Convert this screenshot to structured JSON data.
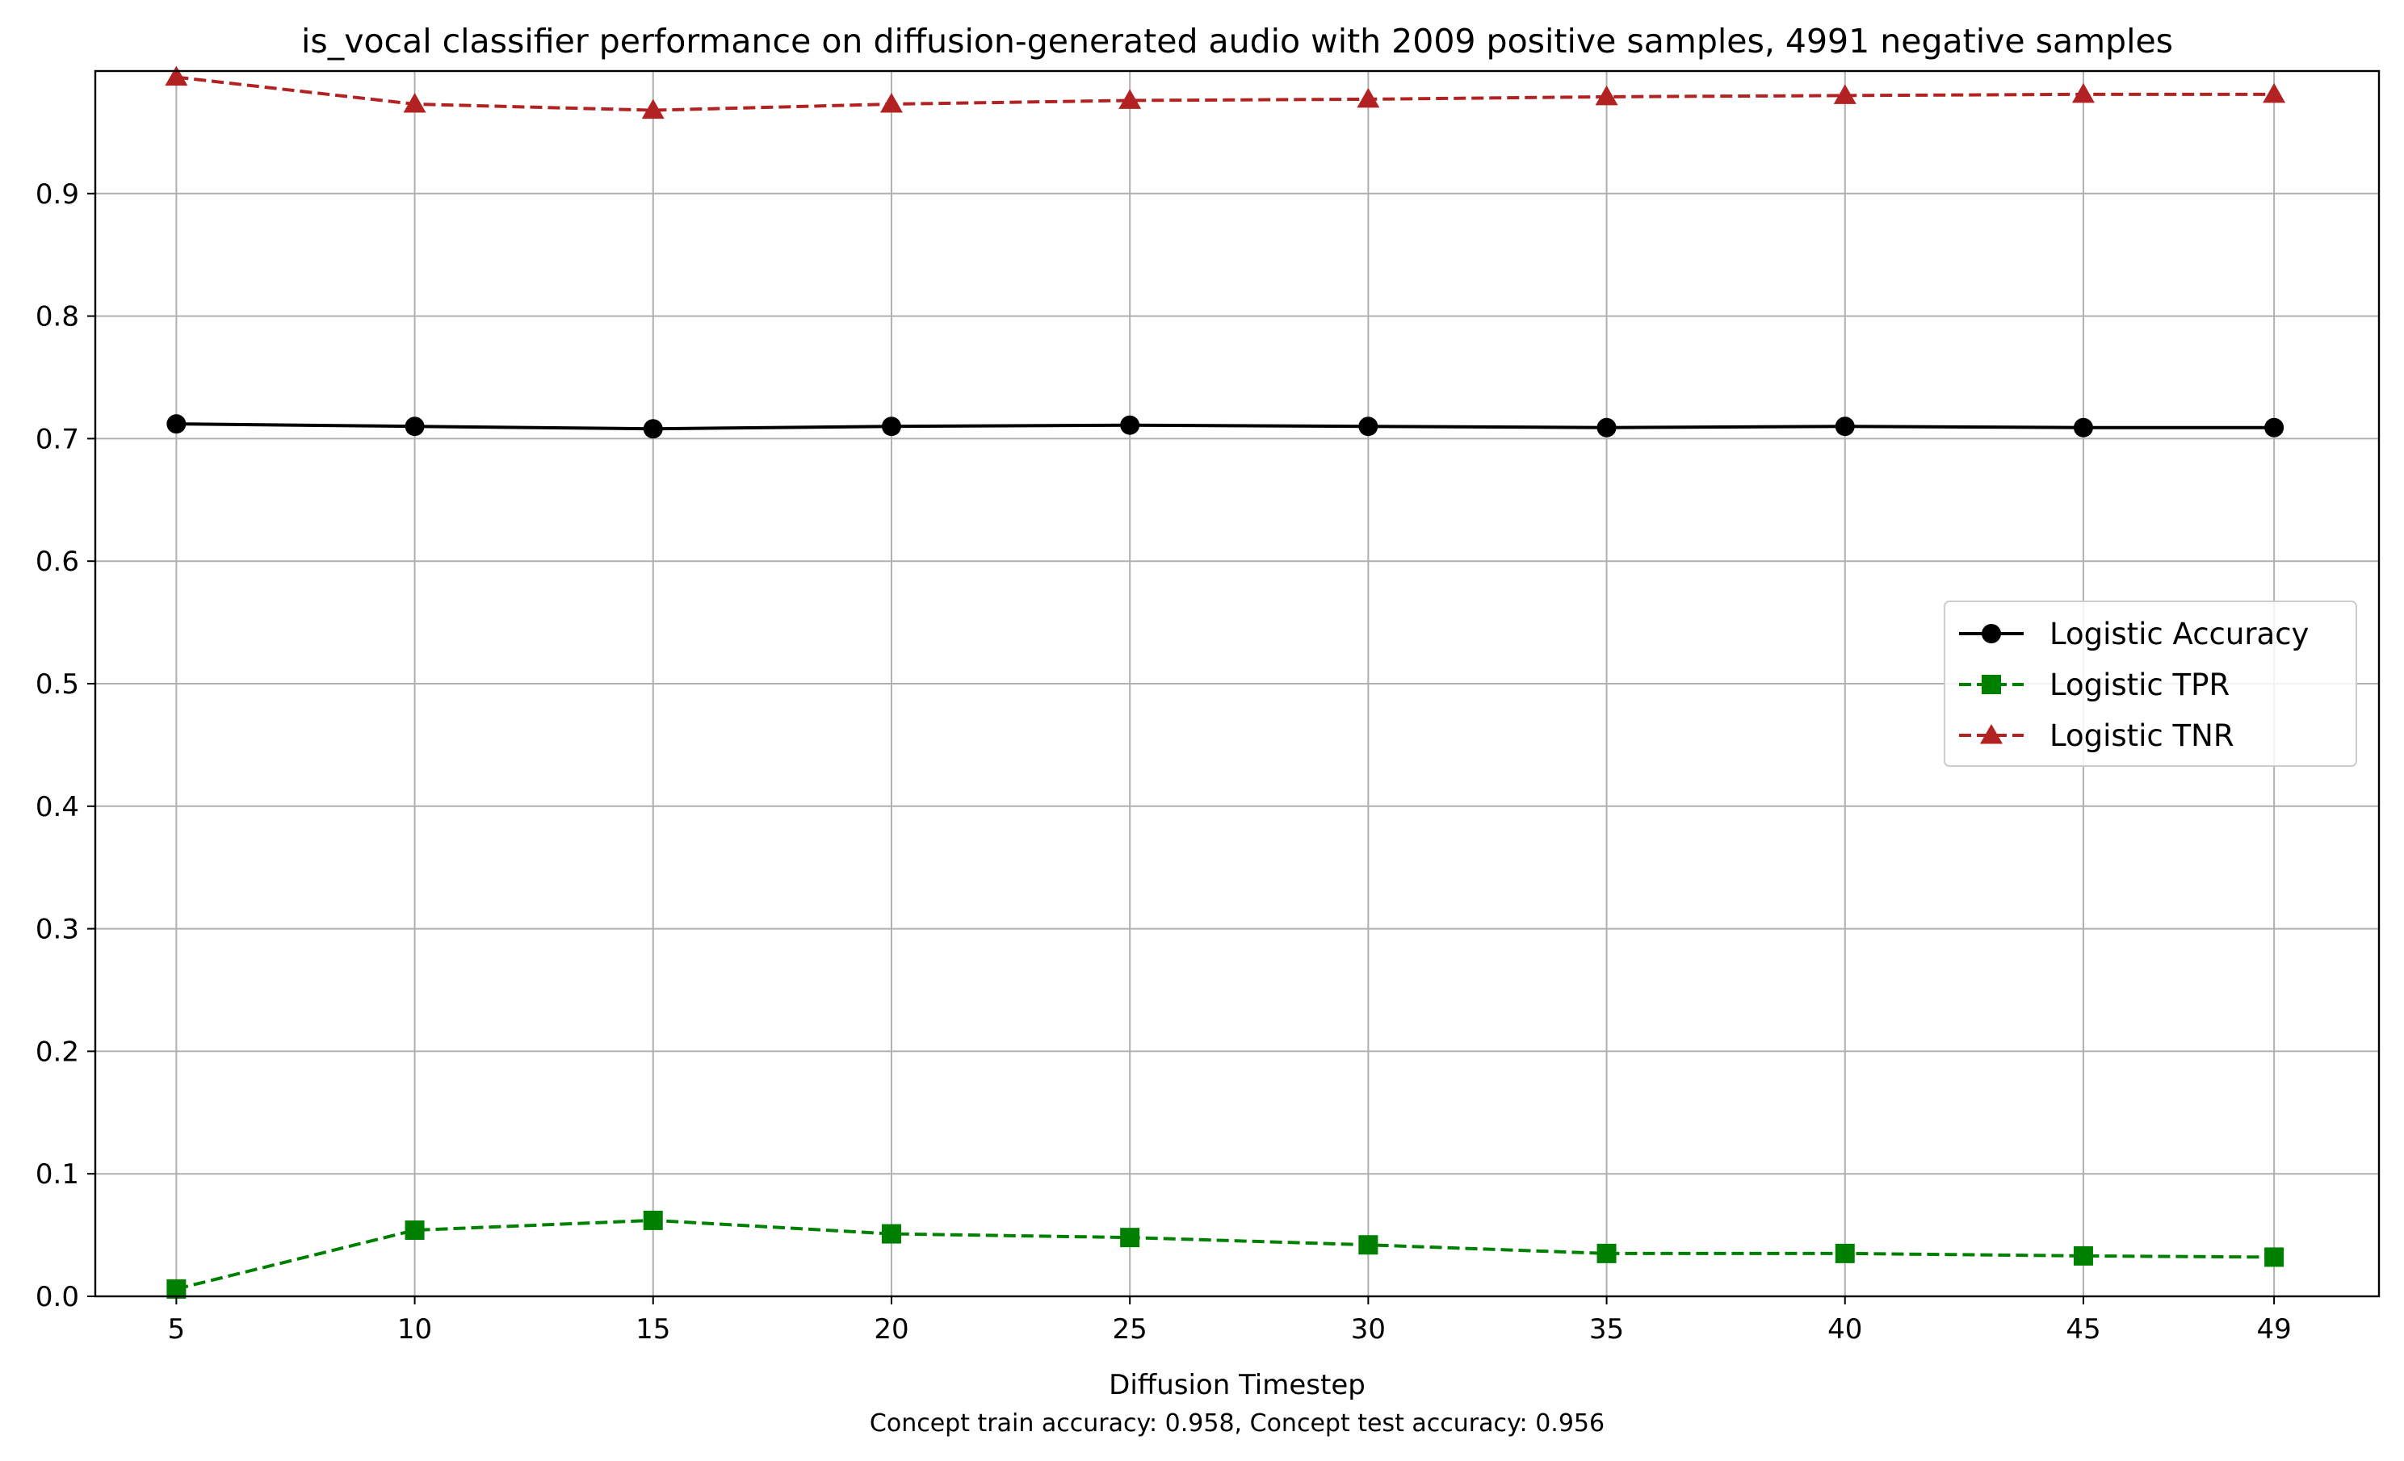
{
  "chart_data": {
    "type": "line",
    "title": "is_vocal classifier performance on diffusion-generated audio with 2009 positive samples, 4991 negative samples",
    "xlabel": "Diffusion Timestep",
    "ylabel": "",
    "footnote": "Concept train accuracy: 0.958, Concept test accuracy: 0.956",
    "x": [
      5,
      10,
      15,
      20,
      25,
      30,
      35,
      40,
      45,
      49
    ],
    "x_tick_labels": [
      "5",
      "10",
      "15",
      "20",
      "25",
      "30",
      "35",
      "40",
      "45",
      "49"
    ],
    "y_ticks": [
      0.0,
      0.1,
      0.2,
      0.3,
      0.4,
      0.5,
      0.6,
      0.7,
      0.8,
      0.9
    ],
    "y_tick_labels": [
      "0.0",
      "0.1",
      "0.2",
      "0.3",
      "0.4",
      "0.5",
      "0.6",
      "0.7",
      "0.8",
      "0.9"
    ],
    "xlim": [
      3.3,
      51.2
    ],
    "ylim": [
      0,
      1.0
    ],
    "grid": true,
    "legend_position": "center-right",
    "series": [
      {
        "name": "Logistic Accuracy",
        "color": "#000000",
        "line_style": "solid",
        "marker": "circle",
        "values": [
          0.712,
          0.71,
          0.708,
          0.71,
          0.711,
          0.71,
          0.709,
          0.71,
          0.709,
          0.709
        ]
      },
      {
        "name": "Logistic TPR",
        "color": "#008000",
        "line_style": "dashed",
        "marker": "square",
        "values": [
          0.006,
          0.054,
          0.062,
          0.051,
          0.048,
          0.042,
          0.035,
          0.035,
          0.033,
          0.032
        ]
      },
      {
        "name": "Logistic TNR",
        "color": "#b22222",
        "line_style": "dashed",
        "marker": "triangle",
        "values": [
          0.995,
          0.973,
          0.968,
          0.973,
          0.976,
          0.977,
          0.979,
          0.98,
          0.981,
          0.981
        ]
      }
    ]
  }
}
